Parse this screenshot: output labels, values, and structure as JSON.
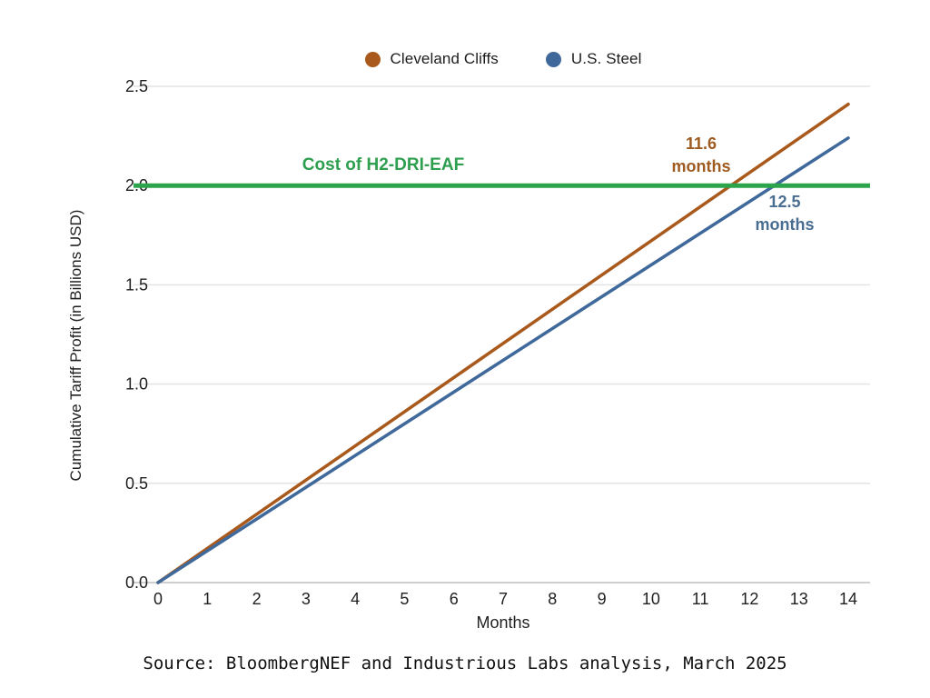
{
  "chart_data": {
    "type": "line",
    "title": "",
    "xlabel": "Months",
    "ylabel": "Cumulative Tariff Profit (in Billions USD)",
    "xlim": [
      0,
      14
    ],
    "ylim": [
      0,
      2.5
    ],
    "xticks": [
      0,
      1,
      2,
      3,
      4,
      5,
      6,
      7,
      8,
      9,
      10,
      11,
      12,
      13,
      14
    ],
    "xtick_labels": [
      "0",
      "1",
      "2",
      "3",
      "4",
      "5",
      "6",
      "7",
      "8",
      "9",
      "10",
      "11",
      "12",
      "13",
      "14"
    ],
    "yticks": [
      0.0,
      0.5,
      1.0,
      1.5,
      2.0,
      2.5
    ],
    "ytick_labels": [
      "0.0",
      "0.5",
      "1.0",
      "1.5",
      "2.0",
      "2.5"
    ],
    "grid": "horizontal",
    "grid_color": "#E4E4E4",
    "axis_color": "#BDBFC1",
    "text_color": "#1f1f1f",
    "series": [
      {
        "name": "Cleveland Cliffs",
        "color": "#A8591B",
        "x": [
          0,
          14
        ],
        "y": [
          0,
          2.41
        ]
      },
      {
        "name": "U.S. Steel",
        "color": "#40699B",
        "x": [
          0,
          14
        ],
        "y": [
          0,
          2.24
        ]
      }
    ],
    "threshold_line": {
      "label": "Cost of H2-DRI-EAF",
      "value": 2.0,
      "color": "#2BA44C",
      "label_color": "#2E9E4F"
    },
    "annotations": [
      {
        "text": "11.6\nmonths",
        "series": "Cleveland Cliffs",
        "months_to_threshold": 11.6,
        "color": "#9E5A1F"
      },
      {
        "text": "12.5\nmonths",
        "series": "U.S. Steel",
        "months_to_threshold": 12.5,
        "color": "#4A6E92"
      }
    ],
    "legend": {
      "position": "top-center"
    },
    "source": "Source: BloombergNEF and Industrious Labs analysis, March 2025"
  }
}
